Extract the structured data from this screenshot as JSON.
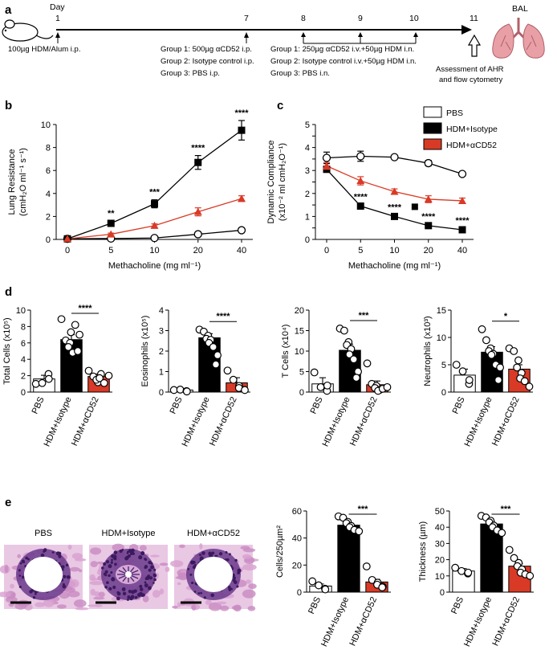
{
  "panels": {
    "a": "a",
    "b": "b",
    "c": "c",
    "d": "d",
    "e": "e"
  },
  "colors": {
    "pbs": "#ffffff",
    "isotype": "#000000",
    "acd52": "#d93a26",
    "stroke": "#000000",
    "stain_purple": "#6b3a8c",
    "stain_pink": "#d7a0cf"
  },
  "timeline": {
    "day_label": "Day",
    "days": [
      "1",
      "7",
      "8",
      "9",
      "10",
      "11"
    ],
    "day1_text": "100µg HDM/Alum i.p.",
    "day7_lines": [
      "Group 1: 500µg αCD52 i.p.",
      "Group 2: Isotype control i.p.",
      "Group 3: PBS i.p."
    ],
    "day8_lines": [
      "Group 1: 250µg αCD52 i.v.+50µg HDM i.n.",
      "Group 2: Isotype control i.v.+50µg HDM i.n.",
      "Group 3: PBS i.n."
    ],
    "day11_lines": [
      "Assessment of AHR",
      "and flow cytometry"
    ],
    "bal_label": "BAL"
  },
  "legend": {
    "pbs": "PBS",
    "isotype": "HDM+Isotype",
    "acd52": "HDM+αCD52"
  },
  "chart_data": [
    {
      "id": "b",
      "type": "line",
      "xlabel": "Methacholine (mg ml⁻¹)",
      "ylabel_lines": [
        "Lung Resistance",
        "(cmH₂O ml⁻¹ s⁻¹)"
      ],
      "categories": [
        "0",
        "5",
        "10",
        "20",
        "40"
      ],
      "ylim": [
        0,
        10
      ],
      "yticks": [
        "0",
        "2",
        "4",
        "6",
        "8",
        "10"
      ],
      "series": [
        {
          "name": "PBS",
          "marker": "circle",
          "values": [
            0.05,
            0.08,
            0.12,
            0.45,
            0.8
          ],
          "errors": [
            0,
            0,
            0,
            0.08,
            0.1
          ]
        },
        {
          "name": "HDM+Isotype",
          "marker": "square",
          "values": [
            0.05,
            1.4,
            3.1,
            6.7,
            9.5
          ],
          "errors": [
            0,
            0.2,
            0.35,
            0.6,
            0.85
          ]
        },
        {
          "name": "HDM+αCD52",
          "marker": "triangle",
          "values": [
            0.05,
            0.45,
            1.2,
            2.4,
            3.55
          ],
          "errors": [
            0,
            0.1,
            0.15,
            0.35,
            0.25
          ]
        }
      ],
      "annotations": [
        {
          "x": "5",
          "text": "**"
        },
        {
          "x": "10",
          "text": "***"
        },
        {
          "x": "20",
          "text": "****"
        },
        {
          "x": "40",
          "text": "****"
        }
      ]
    },
    {
      "id": "c",
      "type": "line",
      "xlabel": "Methacholine (mg ml⁻¹)",
      "ylabel_lines": [
        "Dynamic Compliance",
        "(x10⁻² ml cmH₂O⁻¹)"
      ],
      "categories": [
        "0",
        "5",
        "10",
        "20",
        "40"
      ],
      "ylim": [
        0,
        5
      ],
      "yticks": [
        "0",
        "0.5",
        "1",
        "1.5",
        "2",
        "2.5",
        "3",
        "3.5",
        "4",
        "4.5",
        "5"
      ],
      "series": [
        {
          "name": "PBS",
          "marker": "circle",
          "values": [
            3.55,
            3.62,
            3.58,
            3.32,
            2.85
          ],
          "errors": [
            0.25,
            0.22,
            0,
            0.12,
            0
          ]
        },
        {
          "name": "HDM+Isotype",
          "marker": "square",
          "values": [
            3.05,
            1.45,
            1.0,
            0.6,
            0.42
          ],
          "errors": [
            0,
            0.07,
            0.05,
            0.05,
            0.03
          ]
        },
        {
          "name": "HDM+αCD52",
          "marker": "triangle",
          "values": [
            3.2,
            2.55,
            2.08,
            1.75,
            1.68
          ],
          "errors": [
            0.15,
            0.18,
            0.12,
            0.15,
            0.12
          ]
        }
      ],
      "stray_points": [
        {
          "x": 2.6,
          "y": 1.42
        }
      ],
      "annotations": [
        {
          "x": "5",
          "text": "****"
        },
        {
          "x": "10",
          "text": "****"
        },
        {
          "x": "20",
          "text": "****"
        },
        {
          "x": "40",
          "text": "****"
        }
      ]
    },
    {
      "id": "d1",
      "type": "bar",
      "ylabel": "Total Cells (x10⁵)",
      "ylim": [
        0,
        10
      ],
      "yticks": [
        "0",
        "2",
        "4",
        "6",
        "8",
        "10"
      ],
      "categories": [
        "PBS",
        "HDM+Isotype",
        "HDM+αCD52"
      ],
      "values": [
        1.6,
        6.4,
        1.9
      ],
      "errors": [
        0.45,
        0.6,
        0.3
      ],
      "points": [
        [
          1.0,
          1.1,
          2.2,
          1.6
        ],
        [
          8.9,
          6.3,
          6.0,
          5.5,
          4.8,
          7.3,
          8.2,
          7.0,
          5.0
        ],
        [
          2.6,
          1.9,
          1.2,
          1.5,
          2.2,
          1.7,
          1.1,
          2.0
        ]
      ],
      "sig": {
        "from": 1,
        "to": 2,
        "text": "****"
      }
    },
    {
      "id": "d2",
      "type": "bar",
      "ylabel": "Eosinophils (x10⁵)",
      "ylim": [
        0,
        4
      ],
      "yticks": [
        "0",
        "1",
        "2",
        "3",
        "4"
      ],
      "categories": [
        "PBS",
        "HDM+Isotype",
        "HDM+αCD52"
      ],
      "values": [
        0.1,
        2.65,
        0.45
      ],
      "errors": [
        0.05,
        0.2,
        0.25
      ],
      "points": [
        [
          0.1,
          0.12,
          0.05,
          0.03
        ],
        [
          3.05,
          2.95,
          2.75,
          2.6,
          2.55,
          2.4,
          2.2,
          1.8,
          1.35
        ],
        [
          1.05,
          0.6,
          0.3,
          0.2,
          0.1
        ]
      ],
      "sig": {
        "from": 1,
        "to": 2,
        "text": "****"
      }
    },
    {
      "id": "d3",
      "type": "bar",
      "ylabel": "T Cells (x10⁴)",
      "ylim": [
        0,
        20
      ],
      "yticks": [
        "0",
        "5",
        "10",
        "15",
        "20"
      ],
      "categories": [
        "PBS",
        "HDM+Isotype",
        "HDM+αCD52"
      ],
      "values": [
        2.0,
        10.2,
        1.8
      ],
      "errors": [
        1.5,
        1.5,
        0.9
      ],
      "points": [
        [
          4.8,
          1.2,
          0.3,
          1.6
        ],
        [
          15.5,
          15.0,
          12.2,
          11.5,
          10.5,
          9.2,
          8.0,
          5.0,
          3.5
        ],
        [
          7.0,
          2.0,
          1.5,
          1.0,
          0.5,
          0.3,
          0.8,
          1.2
        ]
      ],
      "sig": {
        "from": 1,
        "to": 2,
        "text": "***"
      }
    },
    {
      "id": "d4",
      "type": "bar",
      "ylabel": "Neutrophils (x10³)",
      "ylim": [
        0,
        15
      ],
      "yticks": [
        "0",
        "5",
        "10",
        "15"
      ],
      "categories": [
        "PBS",
        "HDM+Isotype",
        "HDM+αCD52"
      ],
      "values": [
        3.1,
        7.3,
        4.2
      ],
      "errors": [
        1.1,
        1.0,
        0.8
      ],
      "points": [
        [
          5.0,
          3.8,
          1.5,
          2.2
        ],
        [
          11.5,
          9.5,
          8.0,
          7.5,
          7.0,
          6.8,
          5.0,
          4.5,
          2.2
        ],
        [
          8.0,
          7.5,
          5.8,
          4.5,
          3.5,
          2.5,
          2.0,
          1.0
        ]
      ],
      "sig": {
        "from": 1,
        "to": 2,
        "text": "*"
      }
    },
    {
      "id": "e1",
      "type": "bar",
      "ylabel": "Cells/250µm²",
      "ylim": [
        0,
        60
      ],
      "yticks": [
        "0",
        "20",
        "40",
        "60"
      ],
      "categories": [
        "PBS",
        "HDM+Isotype",
        "HDM+αCD52"
      ],
      "values": [
        4.5,
        49.5,
        7.5
      ],
      "errors": [
        1.5,
        2.0,
        2.0
      ],
      "points": [
        [
          8.0,
          5.0,
          2.5,
          2.0
        ],
        [
          56.0,
          55.0,
          52.0,
          51.0,
          49.0,
          48.0,
          46.0,
          45.0
        ],
        [
          19.0,
          9.0,
          7.0,
          5.5,
          4.0,
          3.5
        ]
      ],
      "sig": {
        "from": 1,
        "to": 2,
        "text": "***"
      }
    },
    {
      "id": "e2",
      "type": "bar",
      "ylabel": "Thickness (µm)",
      "ylim": [
        0,
        50
      ],
      "yticks": [
        "0",
        "10",
        "20",
        "30",
        "40",
        "50"
      ],
      "categories": [
        "PBS",
        "HDM+Isotype",
        "HDM+αCD52"
      ],
      "values": [
        13.0,
        42.0,
        16.0
      ],
      "errors": [
        1.5,
        1.8,
        1.5
      ],
      "points": [
        [
          15.0,
          13.0,
          11.5,
          12.0
        ],
        [
          47.0,
          46.0,
          44.0,
          43.0,
          41.0,
          40.0,
          38.0,
          36.5
        ],
        [
          26.0,
          21.0,
          18.0,
          16.0,
          14.0,
          12.0,
          11.0,
          10.0
        ]
      ],
      "sig": {
        "from": 1,
        "to": 2,
        "text": "***"
      }
    }
  ],
  "micrographs": [
    "PBS",
    "HDM+Isotype",
    "HDM+αCD52"
  ]
}
